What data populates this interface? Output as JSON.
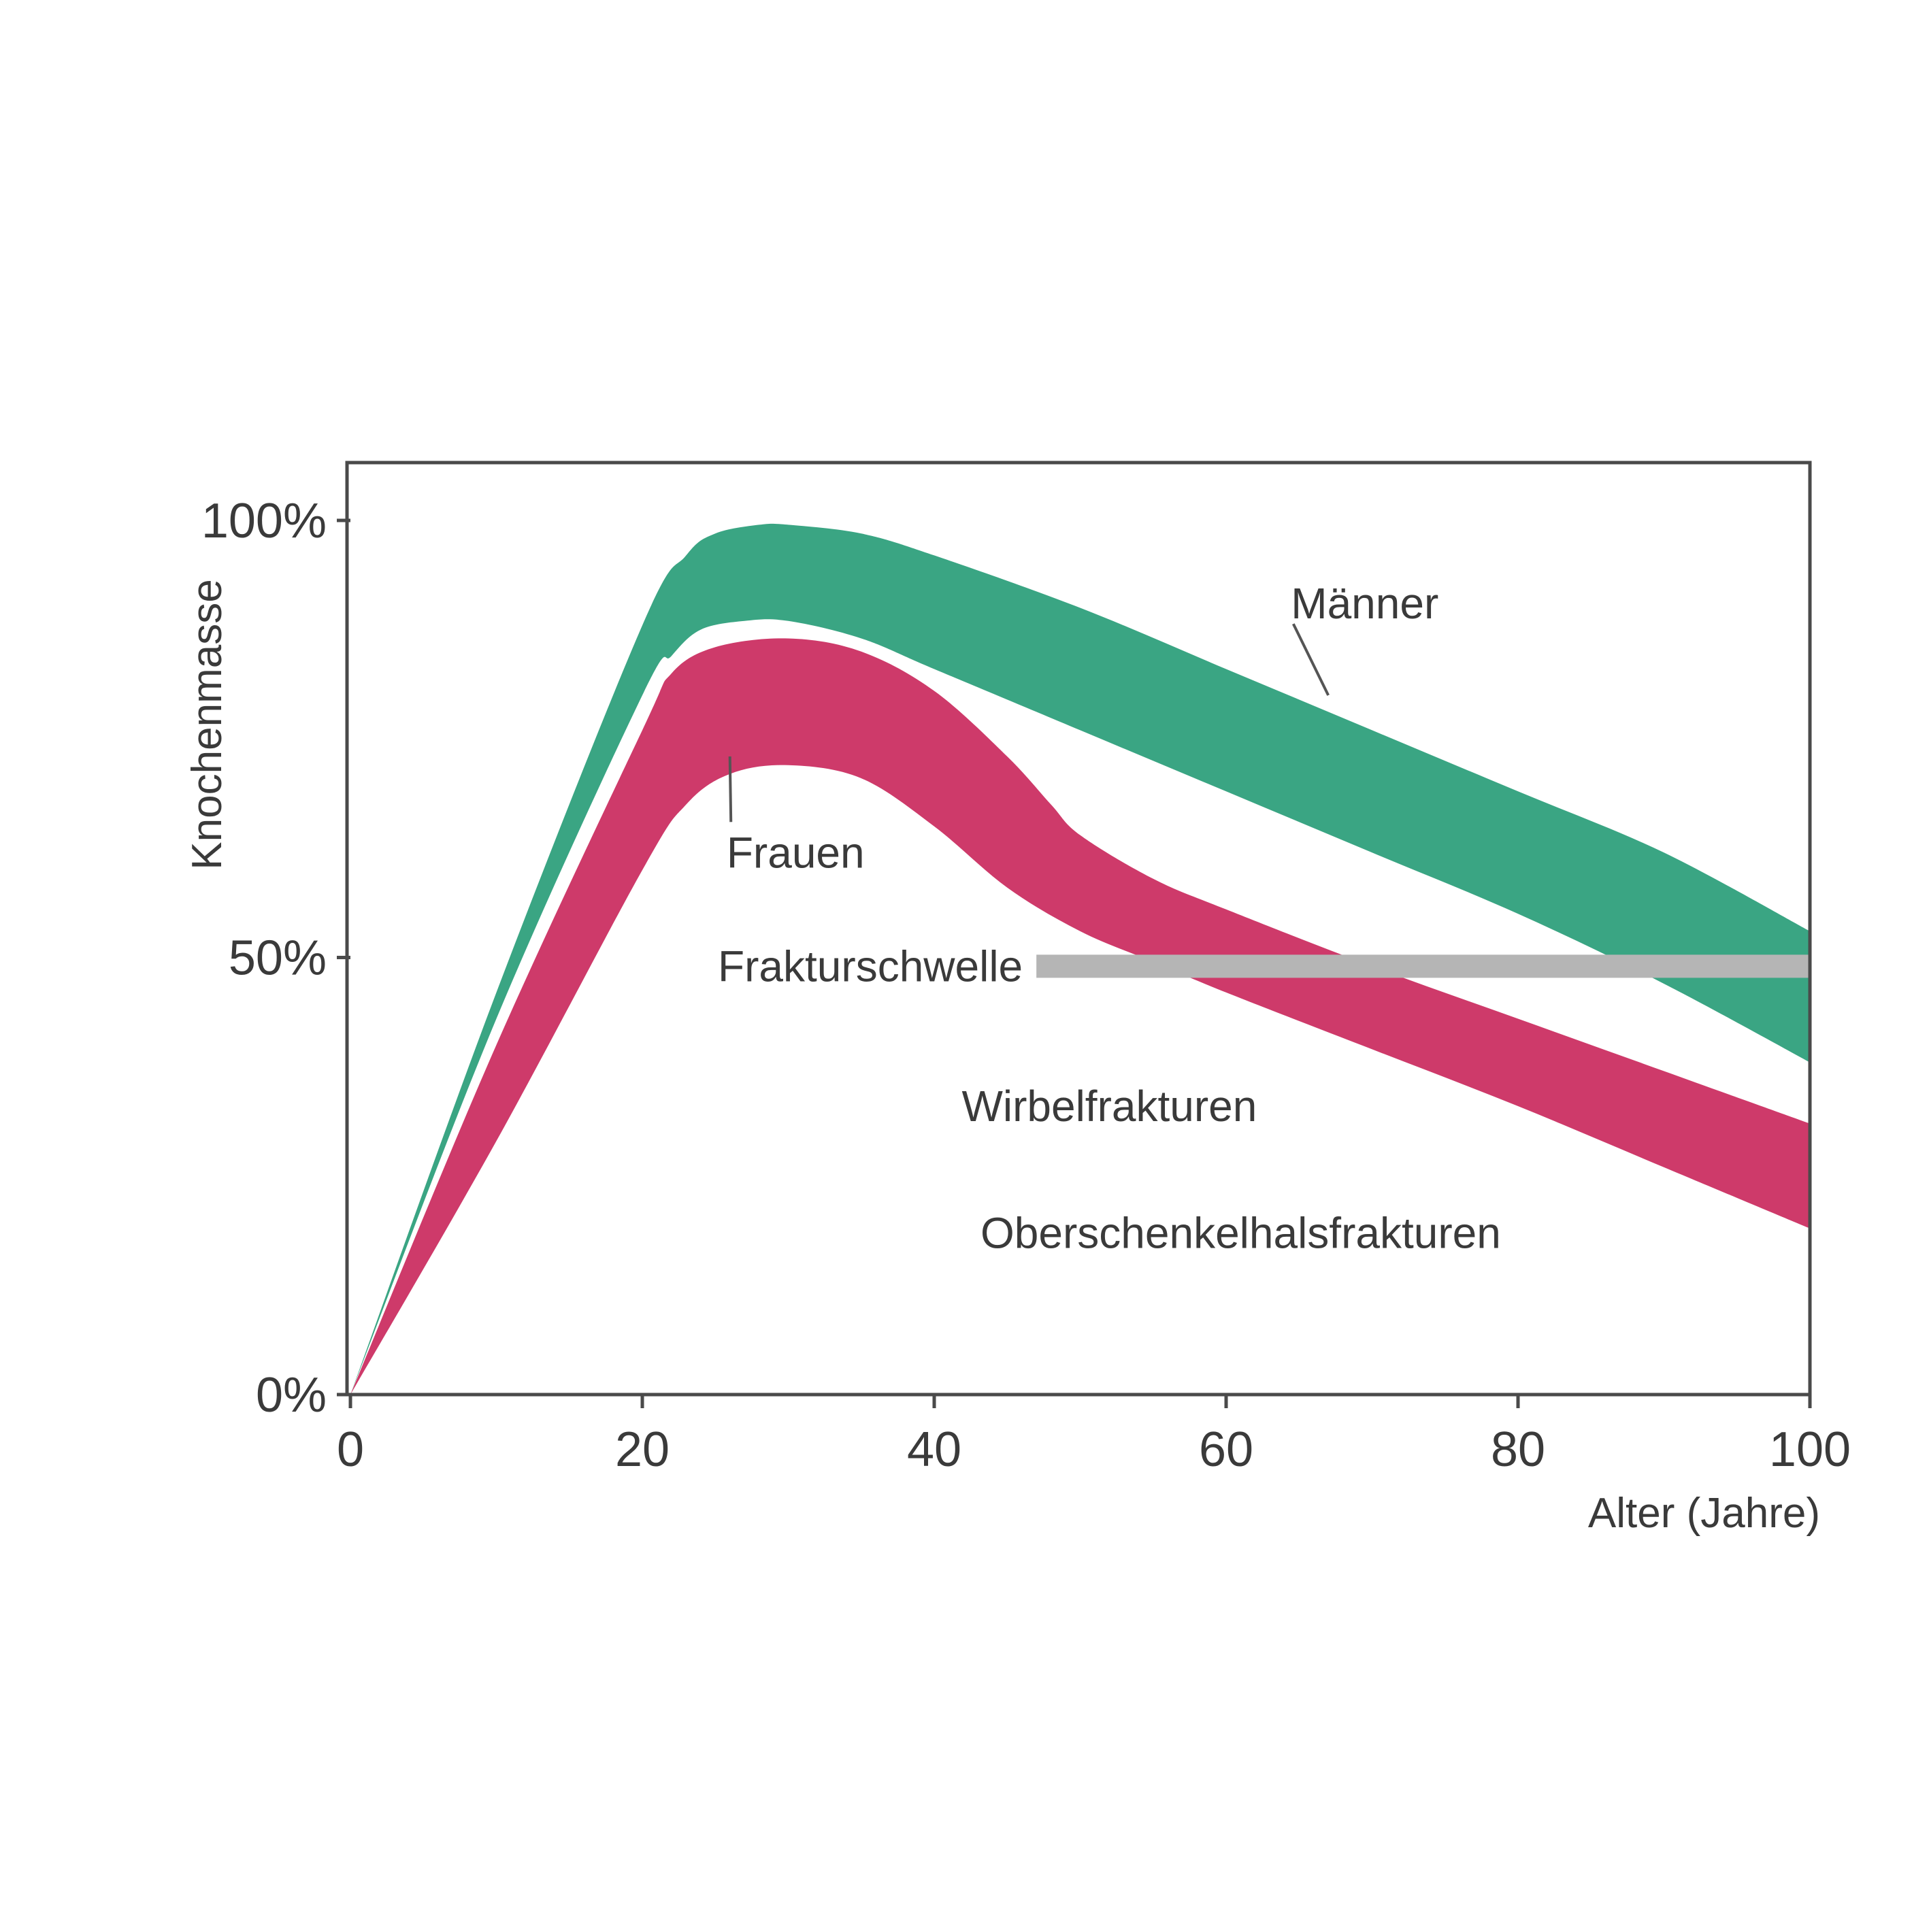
{
  "chart_data": {
    "type": "area",
    "title": "",
    "xlabel": "Alter (Jahre)",
    "ylabel": "Knochenmasse",
    "xlim": [
      0,
      100
    ],
    "ylim": [
      0,
      100
    ],
    "x_ticks": [
      "0",
      "20",
      "40",
      "60",
      "80",
      "100"
    ],
    "y_ticks": [
      "0%",
      "50%",
      "100%"
    ],
    "grid": false,
    "colors": {
      "maenner": "#3aa583",
      "frauen": "#ce3a6a",
      "threshold": "#b5b5b5",
      "frame": "#4a4a4a"
    },
    "series": [
      {
        "name": "Männer",
        "type": "band",
        "upper": [
          [
            0,
            0
          ],
          [
            10,
            46
          ],
          [
            20,
            88
          ],
          [
            23,
            96
          ],
          [
            25,
            98.5
          ],
          [
            28,
            99.5
          ],
          [
            30,
            99.5
          ],
          [
            35,
            98.5
          ],
          [
            40,
            96
          ],
          [
            50,
            90
          ],
          [
            60,
            83
          ],
          [
            70,
            76
          ],
          [
            80,
            69
          ],
          [
            90,
            62
          ],
          [
            100,
            53
          ]
        ],
        "lower": [
          [
            0,
            0
          ],
          [
            10,
            43
          ],
          [
            20,
            80
          ],
          [
            22,
            84.5
          ],
          [
            24,
            87.5
          ],
          [
            27,
            88.5
          ],
          [
            30,
            88.5
          ],
          [
            35,
            86.5
          ],
          [
            40,
            83
          ],
          [
            50,
            76
          ],
          [
            60,
            69
          ],
          [
            70,
            62
          ],
          [
            80,
            55
          ],
          [
            90,
            47
          ],
          [
            100,
            38
          ]
        ]
      },
      {
        "name": "Frauen",
        "type": "band",
        "upper": [
          [
            0,
            0
          ],
          [
            10,
            40
          ],
          [
            20,
            76
          ],
          [
            22,
            82.5
          ],
          [
            25,
            85.5
          ],
          [
            30,
            86.5
          ],
          [
            35,
            85
          ],
          [
            40,
            80.5
          ],
          [
            45,
            73
          ],
          [
            48,
            67.5
          ],
          [
            50,
            64
          ],
          [
            55,
            59
          ],
          [
            60,
            55.5
          ],
          [
            70,
            49
          ],
          [
            80,
            43
          ],
          [
            90,
            37
          ],
          [
            100,
            31
          ]
        ],
        "lower": [
          [
            0,
            0
          ],
          [
            10,
            29
          ],
          [
            20,
            60
          ],
          [
            23,
            67.5
          ],
          [
            26,
            71
          ],
          [
            30,
            72
          ],
          [
            35,
            70.5
          ],
          [
            40,
            65
          ],
          [
            45,
            58
          ],
          [
            50,
            53
          ],
          [
            55,
            49.5
          ],
          [
            60,
            46
          ],
          [
            70,
            39.5
          ],
          [
            80,
            33
          ],
          [
            90,
            26
          ],
          [
            100,
            19
          ]
        ]
      }
    ],
    "threshold": {
      "label": "Frakturschwelle",
      "y": 49,
      "x_start": 47,
      "x_end": 100
    },
    "annotations": [
      {
        "text": "Männer",
        "x": 69.5,
        "y": 90.5,
        "pointer_to": [
          67,
          80
        ]
      },
      {
        "text": "Frauen",
        "x": 30.5,
        "y": 62,
        "pointer_to": [
          26,
          73
        ]
      },
      {
        "text": "Wirbelfrakturen",
        "x": 52,
        "y": 33
      },
      {
        "text": "Oberschenkelhalsfrakturen",
        "x": 61,
        "y": 18.5
      }
    ]
  }
}
